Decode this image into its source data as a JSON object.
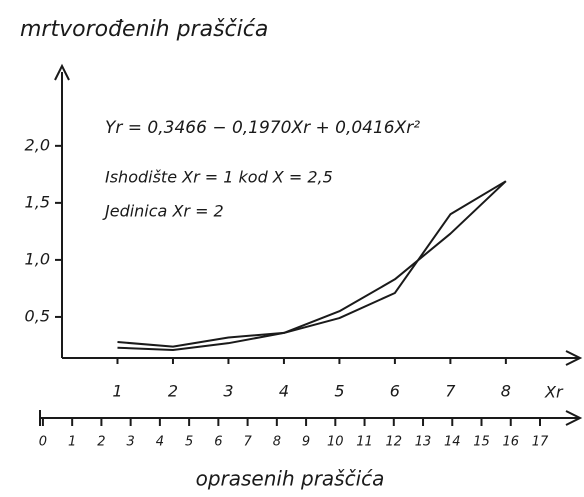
{
  "chart_data": {
    "type": "line",
    "title": "mrtvorođenih praščića",
    "annotations": [
      "Yr = 0,3466 − 0,1970Xr + 0,0416Xr²",
      "Ishodište Xr = 1 kod X = 2,5",
      "Jedinica Xr = 2"
    ],
    "x_label": "Xr",
    "x2_label": "oprasenih praščića",
    "x": [
      1,
      2,
      3,
      4,
      5,
      6,
      7,
      8
    ],
    "series": [
      {
        "color": "#1a1a1a",
        "values": [
          0.23,
          0.21,
          0.27,
          0.36,
          0.55,
          0.83,
          1.23,
          1.69
        ]
      },
      {
        "color": "#1a1a1a",
        "values": [
          0.28,
          0.24,
          0.32,
          0.36,
          0.49,
          0.71,
          1.4,
          1.69
        ]
      }
    ],
    "xlim": [
      0,
      9.3
    ],
    "xticks": [
      1,
      2,
      3,
      4,
      5,
      6,
      7,
      8
    ],
    "ylim": [
      0.14,
      2.7
    ],
    "yticks": [
      {
        "value": 0.5,
        "label": "0,5"
      },
      {
        "value": 1.0,
        "label": "1,0"
      },
      {
        "value": 1.5,
        "label": "1,5"
      },
      {
        "value": 2.0,
        "label": "2,0"
      }
    ],
    "x2lim": [
      -0.1,
      18.3
    ],
    "x2ticks": [
      0,
      1,
      2,
      3,
      4,
      5,
      6,
      7,
      8,
      9,
      10,
      11,
      12,
      13,
      14,
      15,
      16,
      17
    ],
    "grid": false
  }
}
